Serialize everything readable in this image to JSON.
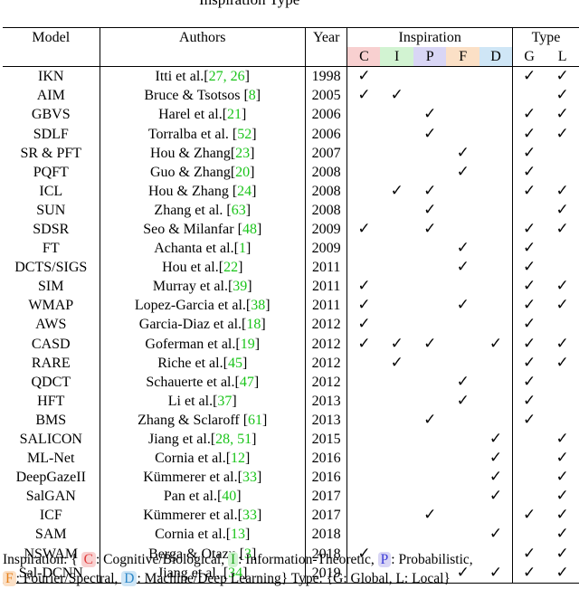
{
  "top_text": "Inspiration          Type",
  "colors": {
    "cognitive": "#f8d0d0",
    "information": "#d2f3d2",
    "probabilistic": "#d9d6f5",
    "fourier": "#fbe0c6",
    "machine": "#cfe6f6"
  },
  "header": {
    "model": "Model",
    "authors": "Authors",
    "year": "Year",
    "inspiration": "Inspiration",
    "type": "Type",
    "sub": [
      "C",
      "I",
      "P",
      "F",
      "D",
      "G",
      "L"
    ]
  },
  "check_symbol": "✓",
  "rows": [
    {
      "model": "IKN",
      "authors": "Itti et al.[",
      "refs": "27, 26",
      "tail": "]",
      "year": "1998",
      "checks": [
        1,
        0,
        0,
        0,
        0,
        1,
        1
      ]
    },
    {
      "model": "AIM",
      "authors": "Bruce & Tsotsos [",
      "refs": "8",
      "tail": "]",
      "year": "2005",
      "checks": [
        1,
        1,
        0,
        0,
        0,
        0,
        1
      ]
    },
    {
      "model": "GBVS",
      "authors": "Harel et al.[",
      "refs": "21",
      "tail": "]",
      "year": "2006",
      "checks": [
        0,
        0,
        1,
        0,
        0,
        1,
        1
      ]
    },
    {
      "model": "SDLF",
      "authors": "Torralba et al. [",
      "refs": "52",
      "tail": "]",
      "year": "2006",
      "checks": [
        0,
        0,
        1,
        0,
        0,
        1,
        1
      ]
    },
    {
      "model": "SR & PFT",
      "authors": "Hou & Zhang[",
      "refs": "23",
      "tail": "]",
      "year": "2007",
      "checks": [
        0,
        0,
        0,
        1,
        0,
        1,
        0
      ]
    },
    {
      "model": "PQFT",
      "authors": "Guo & Zhang[",
      "refs": "20",
      "tail": "]",
      "year": "2008",
      "checks": [
        0,
        0,
        0,
        1,
        0,
        1,
        0
      ]
    },
    {
      "model": "ICL",
      "authors": "Hou & Zhang [",
      "refs": "24",
      "tail": "]",
      "year": "2008",
      "checks": [
        0,
        1,
        1,
        0,
        0,
        1,
        1
      ]
    },
    {
      "model": "SUN",
      "authors": "Zhang et al. [",
      "refs": "63",
      "tail": "]",
      "year": "2008",
      "checks": [
        0,
        0,
        1,
        0,
        0,
        0,
        1
      ]
    },
    {
      "model": "SDSR",
      "authors": "Seo & Milanfar [",
      "refs": "48",
      "tail": "]",
      "year": "2009",
      "checks": [
        1,
        0,
        1,
        0,
        0,
        1,
        1
      ]
    },
    {
      "model": "FT",
      "authors": "Achanta et al.[",
      "refs": "1",
      "tail": "]",
      "year": "2009",
      "checks": [
        0,
        0,
        0,
        1,
        0,
        1,
        0
      ]
    },
    {
      "model": "DCTS/SIGS",
      "authors": "Hou et al.[",
      "refs": "22",
      "tail": "]",
      "year": "2011",
      "checks": [
        0,
        0,
        0,
        1,
        0,
        1,
        0
      ]
    },
    {
      "model": "SIM",
      "authors": "Murray et al.[",
      "refs": "39",
      "tail": "]",
      "year": "2011",
      "checks": [
        1,
        0,
        0,
        0,
        0,
        1,
        1
      ]
    },
    {
      "model": "WMAP",
      "authors": "Lopez-Garcia et al.[",
      "refs": "38",
      "tail": "]",
      "year": "2011",
      "checks": [
        1,
        0,
        0,
        1,
        0,
        1,
        1
      ]
    },
    {
      "model": "AWS",
      "authors": "Garcia-Diaz et al.[",
      "refs": "18",
      "tail": "]",
      "year": "2012",
      "checks": [
        1,
        0,
        0,
        0,
        0,
        1,
        0
      ]
    },
    {
      "model": "CASD",
      "authors": "Goferman et al.[",
      "refs": "19",
      "tail": "]",
      "year": "2012",
      "checks": [
        1,
        1,
        1,
        0,
        1,
        1,
        1
      ]
    },
    {
      "model": "RARE",
      "authors": "Riche et al.[",
      "refs": "45",
      "tail": "]",
      "year": "2012",
      "checks": [
        0,
        1,
        0,
        0,
        0,
        1,
        1
      ]
    },
    {
      "model": "QDCT",
      "authors": "Schauerte et al.[",
      "refs": "47",
      "tail": "]",
      "year": "2012",
      "checks": [
        0,
        0,
        0,
        1,
        0,
        1,
        0
      ]
    },
    {
      "model": "HFT",
      "authors": "Li et al.[",
      "refs": "37",
      "tail": "]",
      "year": "2013",
      "checks": [
        0,
        0,
        0,
        1,
        0,
        1,
        0
      ]
    },
    {
      "model": "BMS",
      "authors": "Zhang & Sclaroff [",
      "refs": "61",
      "tail": "]",
      "year": "2013",
      "checks": [
        0,
        0,
        1,
        0,
        0,
        1,
        0
      ]
    },
    {
      "model": "SALICON",
      "authors": "Jiang et al.[",
      "refs": "28, 51",
      "tail": "]",
      "year": "2015",
      "checks": [
        0,
        0,
        0,
        0,
        1,
        0,
        1
      ]
    },
    {
      "model": "ML-Net",
      "authors": "Cornia et al.[",
      "refs": "12",
      "tail": "]",
      "year": "2016",
      "checks": [
        0,
        0,
        0,
        0,
        1,
        0,
        1
      ]
    },
    {
      "model": "DeepGazeII",
      "authors": "Kümmerer et al.[",
      "refs": "33",
      "tail": "]",
      "year": "2016",
      "checks": [
        0,
        0,
        0,
        0,
        1,
        0,
        1
      ]
    },
    {
      "model": "SalGAN",
      "authors": "Pan et al.[",
      "refs": "40",
      "tail": "]",
      "year": "2017",
      "checks": [
        0,
        0,
        0,
        0,
        1,
        0,
        1
      ]
    },
    {
      "model": "ICF",
      "authors": "Kümmerer et al.[",
      "refs": "33",
      "tail": "]",
      "year": "2017",
      "checks": [
        0,
        0,
        1,
        0,
        0,
        1,
        1
      ]
    },
    {
      "model": "SAM",
      "authors": "Cornia et al.[",
      "refs": "13",
      "tail": "]",
      "year": "2018",
      "checks": [
        0,
        0,
        0,
        0,
        1,
        0,
        1
      ]
    },
    {
      "model": "NSWAM",
      "authors": "Berga & Otazu [",
      "refs": "3",
      "tail": "]",
      "year": "2018",
      "checks": [
        1,
        0,
        0,
        0,
        0,
        1,
        1
      ]
    },
    {
      "model": "Sal-DCNN",
      "authors": "Jiang et al. [",
      "refs": "34",
      "tail": "]",
      "year": "2019",
      "checks": [
        0,
        0,
        0,
        1,
        1,
        1,
        1
      ]
    }
  ],
  "footnote": {
    "line1_prefix": "Inspiration: {",
    "c_letter": "C",
    "c_text": ": Cognitive/Biological,",
    "i_letter": "I",
    "i_text": ": Information-Theoretic,",
    "p_letter": "P",
    "p_text": ": Probabilistic,",
    "f_letter": "F",
    "f_text": ": Fourier/Spectral,",
    "d_letter": "D",
    "d_text": ": Machine/Deep Learning} Type: {G: Global, L: Local}"
  }
}
